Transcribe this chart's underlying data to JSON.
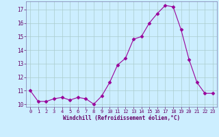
{
  "x": [
    0,
    1,
    2,
    3,
    4,
    5,
    6,
    7,
    8,
    9,
    10,
    11,
    12,
    13,
    14,
    15,
    16,
    17,
    18,
    19,
    20,
    21,
    22,
    23
  ],
  "y": [
    11.0,
    10.2,
    10.2,
    10.4,
    10.5,
    10.3,
    10.5,
    10.4,
    10.0,
    10.6,
    11.6,
    12.9,
    13.4,
    14.8,
    15.0,
    16.0,
    16.7,
    17.3,
    17.2,
    15.5,
    13.3,
    11.6,
    10.8,
    10.8
  ],
  "line_color": "#990099",
  "marker": "D",
  "marker_size": 2.5,
  "bg_color": "#cceeff",
  "grid_color": "#aacccc",
  "xlabel": "Windchill (Refroidissement éolien,°C)",
  "xlabel_color": "#660066",
  "tick_color": "#660066",
  "ylim": [
    9.8,
    17.6
  ],
  "xlim": [
    -0.5,
    23.5
  ],
  "yticks": [
    10,
    11,
    12,
    13,
    14,
    15,
    16,
    17
  ],
  "xticks": [
    0,
    1,
    2,
    3,
    4,
    5,
    6,
    7,
    8,
    9,
    10,
    11,
    12,
    13,
    14,
    15,
    16,
    17,
    18,
    19,
    20,
    21,
    22,
    23
  ],
  "spine_color": "#7777aa"
}
